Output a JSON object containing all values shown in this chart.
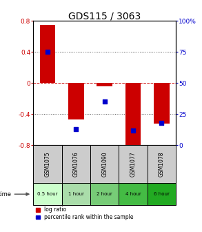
{
  "title": "GDS115 / 3063",
  "samples": [
    "GSM1075",
    "GSM1076",
    "GSM1090",
    "GSM1077",
    "GSM1078"
  ],
  "time_labels": [
    "0.5 hour",
    "1 hour",
    "2 hour",
    "4 hour",
    "6 hour"
  ],
  "time_colors": [
    "#ccffcc",
    "#aaddaa",
    "#77cc77",
    "#44bb44",
    "#22aa22"
  ],
  "log_ratios": [
    0.75,
    -0.47,
    -0.04,
    -0.82,
    -0.52
  ],
  "percentile_ranks": [
    75,
    13,
    35,
    12,
    18
  ],
  "ylim": [
    -0.8,
    0.8
  ],
  "yticks": [
    -0.8,
    -0.4,
    0.0,
    0.4,
    0.8
  ],
  "right_yticks": [
    0,
    25,
    50,
    75,
    100
  ],
  "left_color": "#cc0000",
  "right_color": "#0000cc",
  "bar_width": 0.55,
  "dot_size": 25,
  "hline_color": "#cc0000",
  "grid_color": "#000000",
  "bg_color": "#ffffff",
  "sample_bg": "#cccccc",
  "title_fontsize": 10
}
